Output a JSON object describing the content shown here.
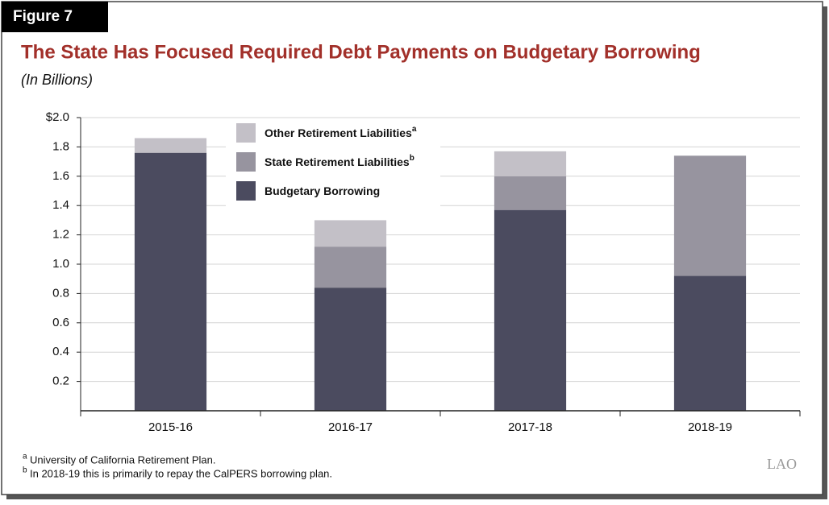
{
  "figure_label": "Figure 7",
  "logo": "LAO",
  "footnotes": [
    {
      "mark": "a",
      "text": "University of California Retirement Plan."
    },
    {
      "mark": "b",
      "text": "In 2018-19 this is primarily to repay the CalPERS borrowing plan."
    }
  ],
  "chart_data": {
    "type": "stacked-bar",
    "title": "The State Has Focused Required Debt Payments on Budgetary Borrowing",
    "subtitle": "(In Billions)",
    "categories": [
      "2015-16",
      "2016-17",
      "2017-18",
      "2018-19"
    ],
    "series": [
      {
        "name": "Budgetary Borrowing",
        "color": "#4b4b5f",
        "values": [
          1.76,
          0.84,
          1.37,
          0.92
        ]
      },
      {
        "name": "State Retirement Liabilities",
        "note": "b",
        "color": "#97949f",
        "values": [
          0,
          0.28,
          0.23,
          0.82
        ]
      },
      {
        "name": "Other Retirement Liabilities",
        "note": "a",
        "color": "#c3c0c7",
        "values": [
          0.1,
          0.18,
          0.17,
          0
        ]
      }
    ],
    "ylim": [
      0,
      2
    ],
    "yticks": [
      {
        "value": 0.2,
        "label": "0.2"
      },
      {
        "value": 0.4,
        "label": "0.4"
      },
      {
        "value": 0.6,
        "label": "0.6"
      },
      {
        "value": 0.8,
        "label": "0.8"
      },
      {
        "value": 1,
        "label": "1.0"
      },
      {
        "value": 1.2,
        "label": "1.2"
      },
      {
        "value": 1.4,
        "label": "1.4"
      },
      {
        "value": 1.6,
        "label": "1.6"
      },
      {
        "value": 1.8,
        "label": "1.8"
      },
      {
        "value": 2,
        "label": "$2.0"
      }
    ],
    "grid": true
  }
}
